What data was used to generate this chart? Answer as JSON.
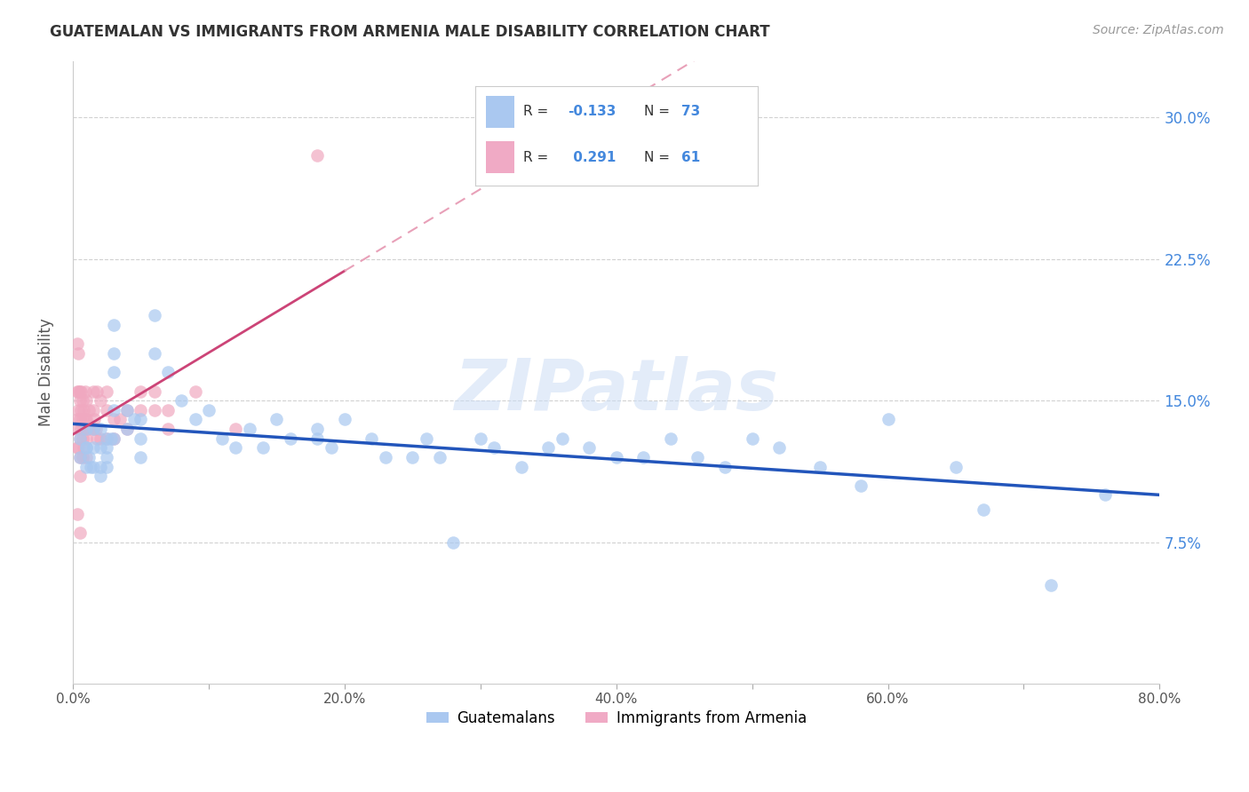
{
  "title": "GUATEMALAN VS IMMIGRANTS FROM ARMENIA MALE DISABILITY CORRELATION CHART",
  "source": "Source: ZipAtlas.com",
  "xlabel_ticks": [
    "0.0%",
    "",
    "20.0%",
    "",
    "40.0%",
    "",
    "60.0%",
    "",
    "80.0%"
  ],
  "xlabel_vals": [
    0.0,
    0.1,
    0.2,
    0.3,
    0.4,
    0.5,
    0.6,
    0.7,
    0.8
  ],
  "ylabel_ticks": [
    "7.5%",
    "15.0%",
    "22.5%",
    "30.0%"
  ],
  "ylabel_vals": [
    0.075,
    0.15,
    0.225,
    0.3
  ],
  "ylabel_label": "Male Disability",
  "watermark": "ZIPatlas",
  "guatemalan_color": "#a8c8f0",
  "armenia_color": "#f0a8c0",
  "guatemalan_trend_color": "#2255bb",
  "armenia_trend_color": "#cc4477",
  "armenia_dash_color": "#e8a0b8",
  "xlim": [
    0.0,
    0.8
  ],
  "ylim": [
    0.0,
    0.33
  ],
  "guatemalan_x": [
    0.005,
    0.005,
    0.01,
    0.01,
    0.01,
    0.01,
    0.012,
    0.013,
    0.015,
    0.015,
    0.015,
    0.02,
    0.02,
    0.02,
    0.02,
    0.025,
    0.025,
    0.025,
    0.025,
    0.028,
    0.03,
    0.03,
    0.03,
    0.03,
    0.03,
    0.04,
    0.04,
    0.045,
    0.05,
    0.05,
    0.05,
    0.06,
    0.06,
    0.07,
    0.08,
    0.09,
    0.1,
    0.11,
    0.12,
    0.13,
    0.14,
    0.15,
    0.16,
    0.18,
    0.18,
    0.19,
    0.2,
    0.22,
    0.23,
    0.25,
    0.26,
    0.27,
    0.28,
    0.3,
    0.31,
    0.33,
    0.35,
    0.36,
    0.38,
    0.4,
    0.42,
    0.44,
    0.46,
    0.48,
    0.5,
    0.52,
    0.55,
    0.58,
    0.6,
    0.65,
    0.67,
    0.72,
    0.76
  ],
  "guatemalan_y": [
    0.13,
    0.12,
    0.135,
    0.125,
    0.115,
    0.125,
    0.12,
    0.115,
    0.135,
    0.125,
    0.115,
    0.135,
    0.125,
    0.115,
    0.11,
    0.13,
    0.125,
    0.12,
    0.115,
    0.13,
    0.19,
    0.175,
    0.165,
    0.145,
    0.13,
    0.145,
    0.135,
    0.14,
    0.14,
    0.13,
    0.12,
    0.175,
    0.195,
    0.165,
    0.15,
    0.14,
    0.145,
    0.13,
    0.125,
    0.135,
    0.125,
    0.14,
    0.13,
    0.135,
    0.13,
    0.125,
    0.14,
    0.13,
    0.12,
    0.12,
    0.13,
    0.12,
    0.075,
    0.13,
    0.125,
    0.115,
    0.125,
    0.13,
    0.125,
    0.12,
    0.12,
    0.13,
    0.12,
    0.115,
    0.13,
    0.125,
    0.115,
    0.105,
    0.14,
    0.115,
    0.092,
    0.052,
    0.1
  ],
  "armenia_x": [
    0.003,
    0.003,
    0.003,
    0.003,
    0.003,
    0.004,
    0.004,
    0.004,
    0.004,
    0.004,
    0.005,
    0.005,
    0.005,
    0.005,
    0.005,
    0.005,
    0.005,
    0.006,
    0.006,
    0.006,
    0.007,
    0.007,
    0.007,
    0.007,
    0.008,
    0.008,
    0.008,
    0.009,
    0.009,
    0.01,
    0.01,
    0.01,
    0.01,
    0.012,
    0.012,
    0.015,
    0.015,
    0.015,
    0.016,
    0.017,
    0.018,
    0.018,
    0.02,
    0.02,
    0.025,
    0.025,
    0.025,
    0.03,
    0.03,
    0.035,
    0.04,
    0.04,
    0.05,
    0.05,
    0.06,
    0.06,
    0.07,
    0.07,
    0.09,
    0.12,
    0.18
  ],
  "armenia_y": [
    0.18,
    0.155,
    0.14,
    0.125,
    0.09,
    0.175,
    0.155,
    0.145,
    0.135,
    0.125,
    0.155,
    0.15,
    0.14,
    0.13,
    0.12,
    0.11,
    0.08,
    0.155,
    0.145,
    0.135,
    0.15,
    0.14,
    0.13,
    0.12,
    0.145,
    0.135,
    0.125,
    0.155,
    0.14,
    0.15,
    0.14,
    0.13,
    0.12,
    0.145,
    0.135,
    0.155,
    0.145,
    0.135,
    0.14,
    0.135,
    0.155,
    0.13,
    0.15,
    0.13,
    0.155,
    0.145,
    0.13,
    0.14,
    0.13,
    0.14,
    0.145,
    0.135,
    0.155,
    0.145,
    0.155,
    0.145,
    0.145,
    0.135,
    0.155,
    0.135,
    0.28
  ]
}
